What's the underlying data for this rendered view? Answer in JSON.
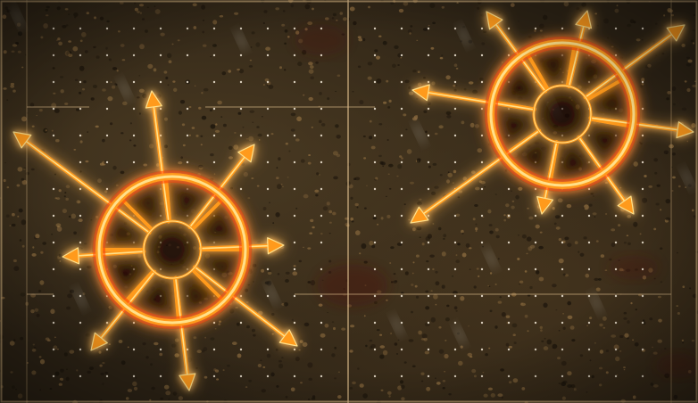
{
  "scene": {
    "name": "rotating-arrow-wheel-floor-puzzle",
    "colors": {
      "ground": "#2e2416",
      "gravel_light": "#8a6a3e",
      "gravel_dark": "#1b140b",
      "grid_line": "#c8a878",
      "grid_dot": "#f4ead8",
      "glow_core": "#ffe08a",
      "glow_mid": "#ff9a1a",
      "glow_outer": "#ff3a00"
    }
  },
  "wheels": [
    {
      "id": "left-wheel",
      "arrow_count": 8
    },
    {
      "id": "right-wheel",
      "arrow_count": 8
    }
  ]
}
